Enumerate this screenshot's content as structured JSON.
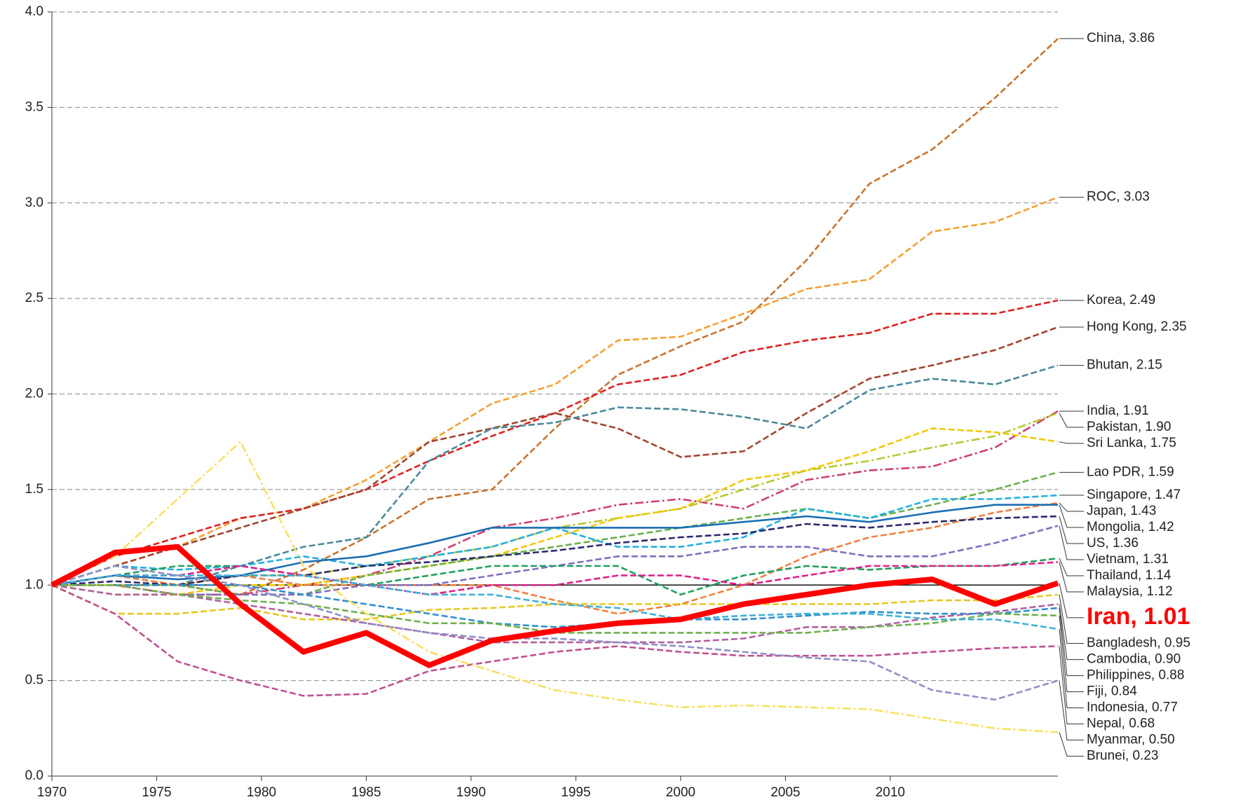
{
  "chart_data": {
    "type": "line",
    "x": [
      1970,
      1973,
      1976,
      1979,
      1982,
      1985,
      1988,
      1991,
      1994,
      1997,
      2000,
      2003,
      2006,
      2009,
      2012,
      2015,
      2018
    ],
    "xlim": [
      1970,
      2018
    ],
    "xticks": [
      1970,
      1975,
      1980,
      1985,
      1990,
      1995,
      2000,
      2005,
      2010
    ],
    "ylim": [
      0,
      4
    ],
    "yticks": [
      {
        "value": 0,
        "label": "0.0"
      },
      {
        "value": 0.5,
        "label": "0.5"
      },
      {
        "value": 1,
        "label": "1.0"
      },
      {
        "value": 1.5,
        "label": "1.5"
      },
      {
        "value": 2,
        "label": "2.0"
      },
      {
        "value": 2.5,
        "label": "2.5"
      },
      {
        "value": 3,
        "label": "3.0"
      },
      {
        "value": 3.5,
        "label": "3.5"
      },
      {
        "value": 4,
        "label": "4.0"
      }
    ],
    "grid": true,
    "reference_line": 1,
    "series": [
      {
        "name": "China, 3.86",
        "color": "#c8742e",
        "dash": "dashed",
        "values": [
          1.0,
          1.05,
          1.0,
          0.95,
          1.08,
          1.25,
          1.45,
          1.5,
          1.82,
          2.1,
          2.25,
          2.38,
          2.7,
          3.1,
          3.28,
          3.55,
          3.86
        ]
      },
      {
        "name": "ROC, 3.03",
        "color": "#f5a033",
        "dash": "dashed",
        "values": [
          1.0,
          1.1,
          1.2,
          1.35,
          1.4,
          1.55,
          1.75,
          1.95,
          2.05,
          2.28,
          2.3,
          2.42,
          2.55,
          2.6,
          2.85,
          2.9,
          3.03
        ]
      },
      {
        "name": "Korea, 2.49",
        "color": "#e02020",
        "dash": "dashed",
        "values": [
          1.0,
          1.15,
          1.25,
          1.35,
          1.4,
          1.5,
          1.65,
          1.78,
          1.9,
          2.05,
          2.1,
          2.22,
          2.28,
          2.32,
          2.42,
          2.42,
          2.49
        ]
      },
      {
        "name": "Hong Kong, 2.35",
        "color": "#a04530",
        "dash": "dashed",
        "values": [
          1.0,
          1.1,
          1.2,
          1.3,
          1.4,
          1.5,
          1.75,
          1.82,
          1.9,
          1.82,
          1.67,
          1.7,
          1.9,
          2.08,
          2.15,
          2.23,
          2.35
        ]
      },
      {
        "name": "Bhutan, 2.15",
        "color": "#4a8a9a",
        "dash": "dashed",
        "values": [
          1.0,
          1.05,
          1.0,
          1.1,
          1.2,
          1.25,
          1.65,
          1.82,
          1.85,
          1.93,
          1.92,
          1.88,
          1.82,
          2.02,
          2.08,
          2.05,
          2.15
        ]
      },
      {
        "name": "India, 1.91",
        "color": "#d04070",
        "dash": "dashdot",
        "values": [
          1.0,
          1.0,
          0.95,
          0.95,
          1.0,
          1.05,
          1.15,
          1.3,
          1.35,
          1.42,
          1.45,
          1.4,
          1.55,
          1.6,
          1.62,
          1.72,
          1.91
        ]
      },
      {
        "name": "Pakistan, 1.90",
        "color": "#b8c830",
        "dash": "dashdot",
        "values": [
          1.0,
          1.0,
          1.0,
          1.05,
          1.05,
          1.1,
          1.15,
          1.2,
          1.3,
          1.35,
          1.4,
          1.5,
          1.6,
          1.65,
          1.72,
          1.78,
          1.9
        ]
      },
      {
        "name": "Sri Lanka, 1.75",
        "color": "#f0c800",
        "dash": "dashed",
        "values": [
          1.0,
          0.95,
          0.95,
          1.0,
          1.0,
          1.05,
          1.1,
          1.15,
          1.25,
          1.35,
          1.4,
          1.55,
          1.6,
          1.7,
          1.82,
          1.8,
          1.75
        ]
      },
      {
        "name": "Lao PDR, 1.59",
        "color": "#6ab04c",
        "dash": "dashed",
        "values": [
          1.0,
          1.0,
          1.0,
          0.95,
          0.95,
          1.05,
          1.1,
          1.15,
          1.2,
          1.25,
          1.3,
          1.35,
          1.4,
          1.35,
          1.42,
          1.5,
          1.59
        ]
      },
      {
        "name": "Singapore, 1.47",
        "color": "#20b0e0",
        "dash": "dashed",
        "values": [
          1.0,
          1.1,
          1.08,
          1.1,
          1.15,
          1.1,
          1.15,
          1.2,
          1.3,
          1.2,
          1.2,
          1.25,
          1.4,
          1.35,
          1.45,
          1.45,
          1.47
        ]
      },
      {
        "name": "Japan, 1.43",
        "color": "#f08040",
        "dash": "dashed",
        "values": [
          1.0,
          1.05,
          1.0,
          1.05,
          1.0,
          1.0,
          1.0,
          1.0,
          0.92,
          0.85,
          0.9,
          1.0,
          1.15,
          1.25,
          1.3,
          1.38,
          1.43
        ]
      },
      {
        "name": "Mongolia, 1.42",
        "color": "#1a6fb4",
        "dash": "solid",
        "values": [
          1.0,
          1.05,
          1.03,
          1.05,
          1.12,
          1.15,
          1.22,
          1.3,
          1.3,
          1.3,
          1.3,
          1.33,
          1.36,
          1.33,
          1.38,
          1.42,
          1.42
        ]
      },
      {
        "name": "US, 1.36",
        "color": "#2a2a70",
        "dash": "dashed",
        "values": [
          1.0,
          1.02,
          1.0,
          1.05,
          1.05,
          1.1,
          1.12,
          1.15,
          1.18,
          1.22,
          1.25,
          1.27,
          1.32,
          1.3,
          1.33,
          1.35,
          1.36
        ]
      },
      {
        "name": "Vietnam, 1.31",
        "color": "#8070c0",
        "dash": "dashed",
        "values": [
          1.0,
          1.0,
          0.95,
          0.95,
          0.95,
          1.0,
          1.0,
          1.05,
          1.1,
          1.15,
          1.15,
          1.2,
          1.2,
          1.15,
          1.15,
          1.22,
          1.31
        ]
      },
      {
        "name": "Thailand, 1.14",
        "color": "#20a060",
        "dash": "dashed",
        "values": [
          1.0,
          1.05,
          1.1,
          1.1,
          1.05,
          1.0,
          1.05,
          1.1,
          1.1,
          1.1,
          0.95,
          1.05,
          1.1,
          1.08,
          1.1,
          1.1,
          1.14
        ]
      },
      {
        "name": "Malaysia, 1.12",
        "color": "#e0208a",
        "dash": "dashed",
        "values": [
          1.0,
          1.05,
          1.05,
          1.1,
          1.05,
          1.0,
          0.95,
          1.0,
          1.0,
          1.05,
          1.05,
          1.0,
          1.05,
          1.1,
          1.1,
          1.1,
          1.12
        ]
      },
      {
        "name": "Iran, 1.01",
        "color": "#ff0000",
        "dash": "solid",
        "emphasis": true,
        "values": [
          1.0,
          1.17,
          1.2,
          0.9,
          0.65,
          0.75,
          0.58,
          0.71,
          0.76,
          0.8,
          0.82,
          0.9,
          0.95,
          1.0,
          1.03,
          0.9,
          1.01
        ]
      },
      {
        "name": "Bangladesh, 0.95",
        "color": "#e8c820",
        "dash": "dashed",
        "values": [
          1.0,
          0.85,
          0.85,
          0.88,
          0.82,
          0.82,
          0.87,
          0.88,
          0.9,
          0.9,
          0.9,
          0.9,
          0.9,
          0.9,
          0.92,
          0.92,
          0.95
        ]
      },
      {
        "name": "Cambodia, 0.90",
        "color": "#b060a0",
        "dash": "dashed",
        "values": [
          1.0,
          0.95,
          0.95,
          0.9,
          0.85,
          0.8,
          0.75,
          0.7,
          0.7,
          0.7,
          0.7,
          0.72,
          0.78,
          0.78,
          0.83,
          0.86,
          0.9
        ]
      },
      {
        "name": "Philippines, 0.88",
        "color": "#3090d0",
        "dash": "dashed",
        "values": [
          1.0,
          1.0,
          1.0,
          1.0,
          0.95,
          0.9,
          0.85,
          0.8,
          0.78,
          0.8,
          0.82,
          0.82,
          0.84,
          0.86,
          0.85,
          0.85,
          0.88
        ]
      },
      {
        "name": "Fiji, 0.84",
        "color": "#70b050",
        "dash": "dashed",
        "values": [
          1.0,
          1.0,
          0.95,
          0.92,
          0.9,
          0.85,
          0.8,
          0.8,
          0.75,
          0.75,
          0.75,
          0.75,
          0.75,
          0.78,
          0.8,
          0.85,
          0.84
        ]
      },
      {
        "name": "Indonesia, 0.77",
        "color": "#40b0d8",
        "dash": "dashed",
        "values": [
          1.0,
          1.05,
          1.05,
          1.05,
          1.05,
          1.0,
          0.95,
          0.95,
          0.9,
          0.88,
          0.82,
          0.84,
          0.85,
          0.85,
          0.82,
          0.82,
          0.77
        ]
      },
      {
        "name": "Nepal, 0.68",
        "color": "#c05090",
        "dash": "dashed",
        "values": [
          1.0,
          0.85,
          0.6,
          0.5,
          0.42,
          0.43,
          0.55,
          0.6,
          0.65,
          0.68,
          0.65,
          0.63,
          0.63,
          0.63,
          0.65,
          0.67,
          0.68
        ]
      },
      {
        "name": "Myanmar, 0.50",
        "color": "#9090c8",
        "dash": "dashed",
        "values": [
          1.0,
          1.1,
          1.05,
          1.0,
          0.9,
          0.8,
          0.75,
          0.72,
          0.72,
          0.7,
          0.68,
          0.65,
          0.62,
          0.6,
          0.45,
          0.4,
          0.5
        ]
      },
      {
        "name": "Brunei, 0.23",
        "color": "#f8e060",
        "dash": "dashdot",
        "values": [
          1.0,
          1.15,
          1.45,
          1.75,
          1.1,
          0.85,
          0.65,
          0.55,
          0.45,
          0.4,
          0.36,
          0.37,
          0.36,
          0.35,
          0.3,
          0.25,
          0.23
        ]
      }
    ]
  }
}
